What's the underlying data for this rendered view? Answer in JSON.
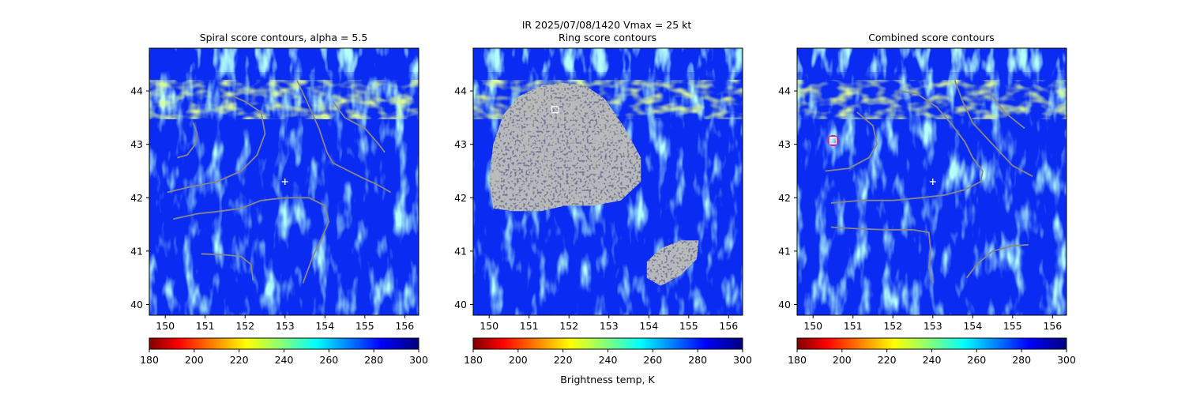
{
  "suptitle": "IR  2025/07/08/1420    Vmax = 25 kt",
  "colorbar_label": "Brightness temp, K",
  "chart_data": [
    {
      "type": "heatmap",
      "title": "Spiral score contours, alpha =  5.5",
      "xlim": [
        149.6,
        156.35
      ],
      "ylim": [
        39.8,
        44.8
      ],
      "xticks": [
        150,
        151,
        152,
        153,
        154,
        155,
        156
      ],
      "yticks": [
        40,
        41,
        42,
        43,
        44
      ],
      "colormap": "jet",
      "colorbar": {
        "range": [
          180,
          300
        ],
        "ticks": [
          180,
          200,
          220,
          240,
          260,
          280,
          300
        ]
      },
      "contour_color": "#888888",
      "center_marker": {
        "symbol": "+",
        "lon": 153.0,
        "lat": 42.3,
        "color": "#ffffff"
      },
      "contours": [
        [
          [
            150.3,
            42.75
          ],
          [
            150.55,
            42.8
          ],
          [
            150.75,
            43.0
          ],
          [
            150.8,
            43.2
          ],
          [
            150.7,
            43.4
          ]
        ],
        [
          [
            150.05,
            42.1
          ],
          [
            150.6,
            42.2
          ],
          [
            151.3,
            42.3
          ],
          [
            151.9,
            42.5
          ],
          [
            152.3,
            42.8
          ],
          [
            152.5,
            43.2
          ],
          [
            152.4,
            43.6
          ],
          [
            152.0,
            43.8
          ],
          [
            151.7,
            43.9
          ]
        ],
        [
          [
            150.2,
            41.6
          ],
          [
            150.8,
            41.7
          ],
          [
            151.4,
            41.75
          ],
          [
            151.9,
            41.8
          ],
          [
            152.4,
            41.95
          ],
          [
            153.0,
            42.0
          ],
          [
            153.6,
            42.0
          ],
          [
            154.0,
            41.85
          ],
          [
            154.1,
            41.55
          ],
          [
            153.9,
            41.2
          ],
          [
            153.7,
            40.9
          ],
          [
            153.55,
            40.6
          ],
          [
            153.45,
            40.4
          ]
        ],
        [
          [
            150.9,
            40.95
          ],
          [
            151.5,
            40.93
          ],
          [
            151.9,
            40.9
          ],
          [
            152.15,
            40.75
          ],
          [
            152.2,
            40.45
          ]
        ],
        [
          [
            153.3,
            44.2
          ],
          [
            153.55,
            43.8
          ],
          [
            153.85,
            43.3
          ],
          [
            154.05,
            42.85
          ],
          [
            154.2,
            42.65
          ],
          [
            154.6,
            42.5
          ],
          [
            155.0,
            42.35
          ],
          [
            155.3,
            42.25
          ],
          [
            155.65,
            42.1
          ]
        ],
        [
          [
            154.2,
            43.8
          ],
          [
            154.5,
            43.5
          ],
          [
            155.0,
            43.3
          ],
          [
            155.35,
            43.0
          ],
          [
            155.5,
            42.85
          ]
        ]
      ]
    },
    {
      "type": "heatmap",
      "title": "Ring score contours",
      "xlim": [
        149.6,
        156.35
      ],
      "ylim": [
        39.8,
        44.8
      ],
      "xticks": [
        150,
        151,
        152,
        153,
        154,
        155,
        156
      ],
      "yticks": [
        40,
        41,
        42,
        43,
        44
      ],
      "colormap": "jet",
      "colorbar": {
        "range": [
          180,
          300
        ],
        "ticks": [
          180,
          200,
          220,
          240,
          260,
          280,
          300
        ],
        "label": "Brightness temp, K"
      },
      "contour_color": "#888888",
      "square_marker": {
        "lon": 151.65,
        "lat": 43.65,
        "color": "#ffffff"
      },
      "filled_regions": [
        [
          [
            150.1,
            41.8
          ],
          [
            150.0,
            42.3
          ],
          [
            150.1,
            43.0
          ],
          [
            150.35,
            43.55
          ],
          [
            150.75,
            43.9
          ],
          [
            151.3,
            44.1
          ],
          [
            151.85,
            44.15
          ],
          [
            152.4,
            44.1
          ],
          [
            152.9,
            43.85
          ],
          [
            153.4,
            43.3
          ],
          [
            153.8,
            42.75
          ],
          [
            153.8,
            42.3
          ],
          [
            153.3,
            41.95
          ],
          [
            152.6,
            41.85
          ],
          [
            151.9,
            41.85
          ],
          [
            151.3,
            41.75
          ],
          [
            150.6,
            41.75
          ]
        ],
        [
          [
            153.95,
            40.5
          ],
          [
            153.95,
            40.8
          ],
          [
            154.3,
            41.05
          ],
          [
            154.8,
            41.2
          ],
          [
            155.25,
            41.2
          ],
          [
            155.2,
            40.85
          ],
          [
            154.8,
            40.55
          ],
          [
            154.3,
            40.35
          ]
        ]
      ]
    },
    {
      "type": "heatmap",
      "title": "Combined score contours",
      "xlim": [
        149.6,
        156.35
      ],
      "ylim": [
        39.8,
        44.8
      ],
      "xticks": [
        150,
        151,
        152,
        153,
        154,
        155,
        156
      ],
      "yticks": [
        40,
        41,
        42,
        43,
        44
      ],
      "colormap": "jet",
      "colorbar": {
        "range": [
          180,
          300
        ],
        "ticks": [
          180,
          200,
          220,
          240,
          260,
          280,
          300
        ]
      },
      "contour_color": "#888888",
      "center_marker": {
        "symbol": "+",
        "lon": 153.0,
        "lat": 42.3,
        "color": "#ffffff"
      },
      "square_marker": {
        "lon": 150.5,
        "lat": 43.07,
        "color": "#ffffff"
      },
      "circle_marker": {
        "lon": 150.5,
        "lat": 43.07,
        "color": "#cc2299"
      },
      "contours": [
        [
          [
            150.3,
            42.5
          ],
          [
            150.9,
            42.55
          ],
          [
            151.4,
            42.75
          ],
          [
            151.6,
            43.0
          ],
          [
            151.5,
            43.35
          ],
          [
            151.1,
            43.6
          ]
        ],
        [
          [
            150.45,
            41.9
          ],
          [
            151.2,
            41.95
          ],
          [
            152.0,
            41.95
          ],
          [
            152.7,
            42.0
          ],
          [
            153.3,
            42.05
          ],
          [
            153.8,
            42.15
          ],
          [
            154.2,
            42.3
          ],
          [
            154.25,
            42.5
          ],
          [
            154.0,
            42.75
          ],
          [
            153.8,
            43.05
          ],
          [
            153.5,
            43.35
          ],
          [
            153.1,
            43.7
          ],
          [
            152.6,
            43.95
          ],
          [
            152.15,
            44.0
          ]
        ],
        [
          [
            150.45,
            41.45
          ],
          [
            151.1,
            41.42
          ],
          [
            151.8,
            41.4
          ],
          [
            152.5,
            41.4
          ],
          [
            152.9,
            41.35
          ],
          [
            152.95,
            41.0
          ],
          [
            152.9,
            40.7
          ],
          [
            153.0,
            40.4
          ]
        ],
        [
          [
            153.55,
            44.2
          ],
          [
            153.75,
            43.8
          ],
          [
            154.0,
            43.4
          ],
          [
            154.5,
            43.0
          ],
          [
            155.0,
            42.6
          ],
          [
            155.5,
            42.4
          ]
        ],
        [
          [
            154.5,
            43.9
          ],
          [
            154.8,
            43.6
          ],
          [
            155.3,
            43.3
          ]
        ],
        [
          [
            153.85,
            40.5
          ],
          [
            154.1,
            40.75
          ],
          [
            154.5,
            41.0
          ],
          [
            155.0,
            41.1
          ],
          [
            155.4,
            41.12
          ]
        ]
      ]
    }
  ]
}
